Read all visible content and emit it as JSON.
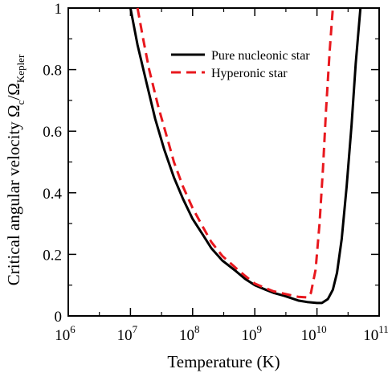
{
  "colors": {
    "nucleonic": "#000000",
    "hyperonic": "#e8181e"
  },
  "chart_data": {
    "type": "line",
    "xlabel": "Temperature (K)",
    "ylabel_parts": [
      "Critical angular velocity Ω",
      "c",
      "/Ω",
      "Kepler"
    ],
    "x_scale": "log",
    "xlim": [
      1000000.0,
      100000000000.0
    ],
    "ylim": [
      0,
      1
    ],
    "x_ticks": [
      {
        "base": "10",
        "exp": "6",
        "value": 1000000.0
      },
      {
        "base": "10",
        "exp": "7",
        "value": 10000000.0
      },
      {
        "base": "10",
        "exp": "8",
        "value": 100000000.0
      },
      {
        "base": "10",
        "exp": "9",
        "value": 1000000000.0
      },
      {
        "base": "10",
        "exp": "10",
        "value": 10000000000.0
      },
      {
        "base": "10",
        "exp": "11",
        "value": 100000000000.0
      }
    ],
    "y_ticks": [
      "0",
      "0.2",
      "0.4",
      "0.6",
      "0.8",
      "1"
    ],
    "y_tick_values": [
      0,
      0.2,
      0.4,
      0.6,
      0.8,
      1
    ],
    "grid": false,
    "legend_position": "top-right",
    "series": [
      {
        "name": "Pure nucleonic star",
        "style": "solid",
        "points": [
          [
            10000000.0,
            1.0
          ],
          [
            13000000.0,
            0.88
          ],
          [
            18000000.0,
            0.76
          ],
          [
            25000000.0,
            0.64
          ],
          [
            35000000.0,
            0.54
          ],
          [
            50000000.0,
            0.45
          ],
          [
            70000000.0,
            0.38
          ],
          [
            100000000.0,
            0.315
          ],
          [
            150000000.0,
            0.26
          ],
          [
            200000000.0,
            0.22
          ],
          [
            300000000.0,
            0.18
          ],
          [
            500000000.0,
            0.145
          ],
          [
            700000000.0,
            0.12
          ],
          [
            1000000000.0,
            0.1
          ],
          [
            1500000000.0,
            0.085
          ],
          [
            2000000000.0,
            0.075
          ],
          [
            3000000000.0,
            0.065
          ],
          [
            5000000000.0,
            0.05
          ],
          [
            7000000000.0,
            0.045
          ],
          [
            10000000000.0,
            0.042
          ],
          [
            12000000000.0,
            0.042
          ],
          [
            15000000000.0,
            0.055
          ],
          [
            18000000000.0,
            0.085
          ],
          [
            21000000000.0,
            0.14
          ],
          [
            25000000000.0,
            0.25
          ],
          [
            30000000000.0,
            0.42
          ],
          [
            36000000000.0,
            0.62
          ],
          [
            42000000000.0,
            0.82
          ],
          [
            50000000000.0,
            1.0
          ]
        ]
      },
      {
        "name": "Hyperonic star",
        "style": "dashed",
        "points": [
          [
            13000000.0,
            1.0
          ],
          [
            16000000.0,
            0.9
          ],
          [
            20000000.0,
            0.8
          ],
          [
            28000000.0,
            0.68
          ],
          [
            40000000.0,
            0.57
          ],
          [
            50000000.0,
            0.5
          ],
          [
            70000000.0,
            0.42
          ],
          [
            100000000.0,
            0.35
          ],
          [
            150000000.0,
            0.285
          ],
          [
            200000000.0,
            0.24
          ],
          [
            300000000.0,
            0.195
          ],
          [
            500000000.0,
            0.155
          ],
          [
            700000000.0,
            0.13
          ],
          [
            1000000000.0,
            0.105
          ],
          [
            1500000000.0,
            0.09
          ],
          [
            2000000000.0,
            0.08
          ],
          [
            3000000000.0,
            0.072
          ],
          [
            5000000000.0,
            0.062
          ],
          [
            7000000000.0,
            0.06
          ],
          [
            8000000000.0,
            0.075
          ],
          [
            9500000000.0,
            0.15
          ],
          [
            11000000000.0,
            0.3
          ],
          [
            12500000000.0,
            0.48
          ],
          [
            14000000000.0,
            0.67
          ],
          [
            16000000000.0,
            0.86
          ],
          [
            18000000000.0,
            1.0
          ]
        ]
      }
    ]
  }
}
